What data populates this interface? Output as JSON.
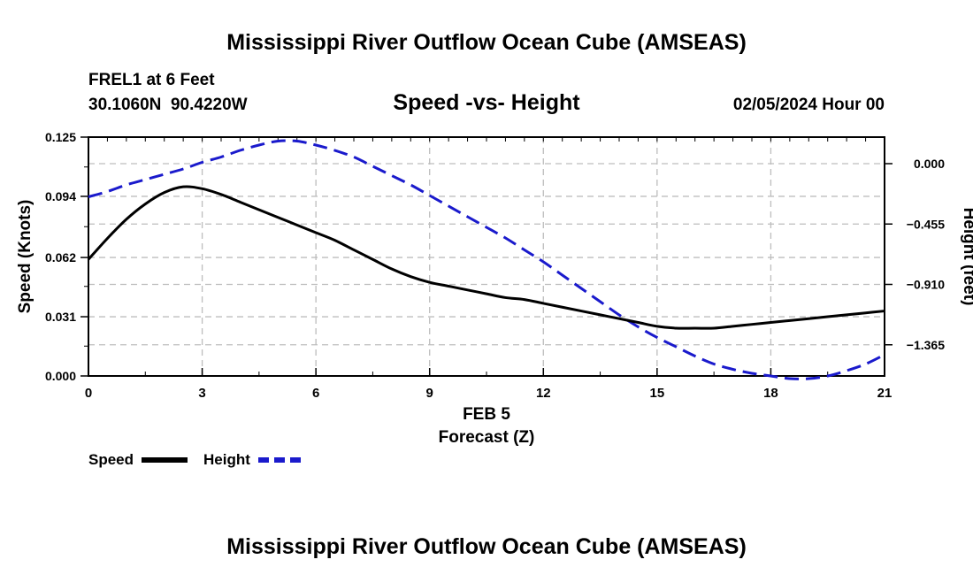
{
  "page": {
    "title": "Mississippi River Outflow Ocean Cube (AMSEAS)",
    "station_line1": "FREL1 at 6 Feet",
    "station_line2": "30.1060N  90.4220W",
    "subtitle": "Speed -vs- Height",
    "datetime": "02/05/2024 Hour 00",
    "footer_title": "Mississippi River Outflow Ocean Cube (AMSEAS)"
  },
  "chart_data": {
    "type": "line",
    "title": "Speed -vs- Height",
    "xlabel": "Forecast (Z)",
    "x_sublabel": "FEB 5",
    "ylabel": "Speed (Knots)",
    "y2label": "Height (feet)",
    "xlim": [
      0,
      21
    ],
    "ylim": [
      0,
      0.125
    ],
    "y2lim": [
      -1.6,
      0.2
    ],
    "x_ticks": [
      0,
      3,
      6,
      9,
      12,
      15,
      18,
      21
    ],
    "y_ticks": [
      0.0,
      0.031,
      0.062,
      0.094,
      0.125
    ],
    "y_tick_labels": [
      "0.000",
      "0.031",
      "0.062",
      "0.094",
      "0.125"
    ],
    "y2_ticks": [
      0.0,
      -0.455,
      -0.91,
      -1.365
    ],
    "y2_tick_labels": [
      "0.000",
      "−0.455",
      "−0.910",
      "−1.365"
    ],
    "grid": true,
    "legend_position": "bottom-left",
    "series": [
      {
        "name": "Speed",
        "axis": "left",
        "color": "#000000",
        "dash": "solid",
        "x": [
          0,
          0.5,
          1,
          1.5,
          2,
          2.5,
          3,
          3.5,
          4,
          4.5,
          5,
          5.5,
          6,
          6.5,
          7,
          7.5,
          8,
          8.5,
          9,
          9.5,
          10,
          10.5,
          11,
          11.5,
          12,
          12.5,
          13,
          13.5,
          14,
          14.5,
          15,
          15.5,
          16,
          16.5,
          17,
          17.5,
          18,
          18.5,
          19,
          19.5,
          20,
          20.5,
          21
        ],
        "values": [
          0.061,
          0.072,
          0.082,
          0.09,
          0.096,
          0.099,
          0.098,
          0.095,
          0.091,
          0.087,
          0.083,
          0.079,
          0.075,
          0.071,
          0.066,
          0.061,
          0.056,
          0.052,
          0.049,
          0.047,
          0.045,
          0.043,
          0.041,
          0.04,
          0.038,
          0.036,
          0.034,
          0.032,
          0.03,
          0.028,
          0.026,
          0.025,
          0.025,
          0.025,
          0.026,
          0.027,
          0.028,
          0.029,
          0.03,
          0.031,
          0.032,
          0.033,
          0.034
        ]
      },
      {
        "name": "Height",
        "axis": "right",
        "color": "#1a1acc",
        "dash": "dashed",
        "x": [
          0,
          0.5,
          1,
          1.5,
          2,
          2.5,
          3,
          3.5,
          4,
          4.5,
          5,
          5.5,
          6,
          6.5,
          7,
          7.5,
          8,
          8.5,
          9,
          9.5,
          10,
          10.5,
          11,
          11.5,
          12,
          12.5,
          13,
          13.5,
          14,
          14.5,
          15,
          15.5,
          16,
          16.5,
          17,
          17.5,
          18,
          18.5,
          19,
          19.5,
          20,
          20.5,
          21
        ],
        "values": [
          -0.25,
          -0.21,
          -0.16,
          -0.12,
          -0.08,
          -0.04,
          0.01,
          0.05,
          0.1,
          0.14,
          0.17,
          0.17,
          0.14,
          0.1,
          0.05,
          -0.02,
          -0.09,
          -0.16,
          -0.24,
          -0.32,
          -0.4,
          -0.48,
          -0.56,
          -0.65,
          -0.74,
          -0.84,
          -0.94,
          -1.04,
          -1.14,
          -1.23,
          -1.31,
          -1.38,
          -1.45,
          -1.51,
          -1.55,
          -1.58,
          -1.6,
          -1.62,
          -1.62,
          -1.6,
          -1.56,
          -1.51,
          -1.44
        ]
      }
    ]
  }
}
